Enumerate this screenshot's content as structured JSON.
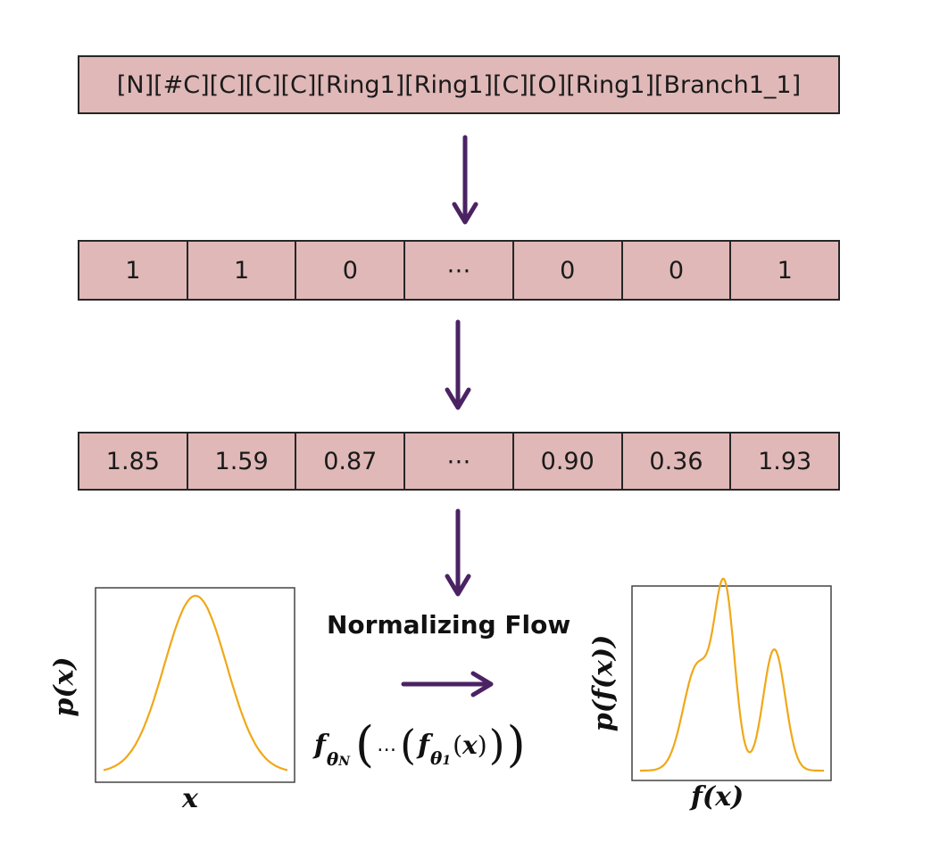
{
  "selfies": "[N][#C][C][C][C][Ring1][Ring1][C][O][Ring1][Branch1_1]",
  "binary_row": [
    "1",
    "1",
    "0",
    "⋯",
    "0",
    "0",
    "1"
  ],
  "float_row": [
    "1.85",
    "1.59",
    "0.87",
    "⋯",
    "0.90",
    "0.36",
    "1.93"
  ],
  "flow_title": "Normalizing Flow",
  "colors": {
    "cell_fill": "#e0b8b8",
    "arrow": "#4b2363",
    "curve": "#f0a818"
  },
  "left_plot": {
    "xlabel": "x",
    "ylabel": "p(x)"
  },
  "right_plot": {
    "xlabel": "f(x)",
    "ylabel": "p(f(x))"
  },
  "formula": {
    "f": "f",
    "theta": "θ",
    "sub_N": "N",
    "sub_1": "1",
    "ellipsis": "…",
    "x": "x"
  }
}
